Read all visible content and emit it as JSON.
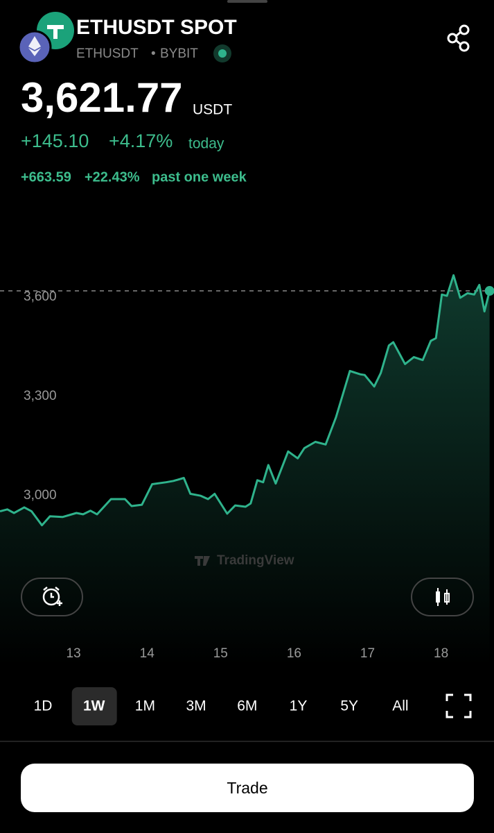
{
  "header": {
    "title": "ETHUSDT SPOT",
    "symbol": "ETHUSDT",
    "exchange": "BYBIT"
  },
  "price": {
    "last": "3,621.77",
    "unit": "USDT",
    "change_today": "+145.10",
    "change_today_pct": "+4.17%",
    "today_label": "today",
    "change_week": "+663.59",
    "change_week_pct": "+22.43%",
    "week_label": "past one week"
  },
  "chart_data": {
    "type": "line",
    "watermark": "TradingView",
    "color": "#2fb38c",
    "grid": false,
    "x": [
      12.0,
      12.1,
      12.19,
      12.33,
      12.43,
      12.57,
      12.68,
      12.85,
      13.04,
      13.13,
      13.23,
      13.32,
      13.51,
      13.7,
      13.79,
      13.93,
      14.07,
      14.26,
      14.36,
      14.5,
      14.59,
      14.73,
      14.83,
      14.92,
      15.09,
      15.2,
      15.34,
      15.41,
      15.5,
      15.58,
      15.65,
      15.75,
      15.92,
      16.05,
      16.14,
      16.29,
      16.43,
      16.57,
      16.76,
      16.9,
      16.96,
      17.09,
      17.18,
      17.29,
      17.35,
      17.51,
      17.63,
      17.75,
      17.86,
      17.93,
      18.01,
      18.08,
      18.17,
      18.26,
      18.36,
      18.45,
      18.52,
      18.59,
      18.66
    ],
    "values": [
      2953,
      2959,
      2948,
      2965,
      2953,
      2911,
      2938,
      2936,
      2948,
      2944,
      2955,
      2944,
      2990,
      2990,
      2969,
      2973,
      3035,
      3041,
      3045,
      3054,
      3006,
      3000,
      2990,
      3006,
      2946,
      2971,
      2967,
      2977,
      3047,
      3041,
      3093,
      3037,
      3134,
      3113,
      3144,
      3163,
      3155,
      3237,
      3377,
      3367,
      3365,
      3330,
      3371,
      3454,
      3464,
      3398,
      3419,
      3410,
      3468,
      3476,
      3608,
      3604,
      3666,
      3598,
      3612,
      3608,
      3637,
      3557,
      3619
    ],
    "xlim": [
      12,
      18.72
    ],
    "xticks": [
      13,
      14,
      15,
      16,
      17,
      18
    ],
    "ylim": [
      2600,
      3900
    ],
    "yticks": [
      {
        "value": 3000,
        "label": "3,000"
      },
      {
        "value": 3300,
        "label": "3,300"
      },
      {
        "value": 3600,
        "label": "3,600"
      }
    ]
  },
  "ranges": {
    "options": [
      "1D",
      "1W",
      "1M",
      "3M",
      "6M",
      "1Y",
      "5Y",
      "All"
    ],
    "selected": 1
  },
  "action": {
    "label": "Trade"
  }
}
